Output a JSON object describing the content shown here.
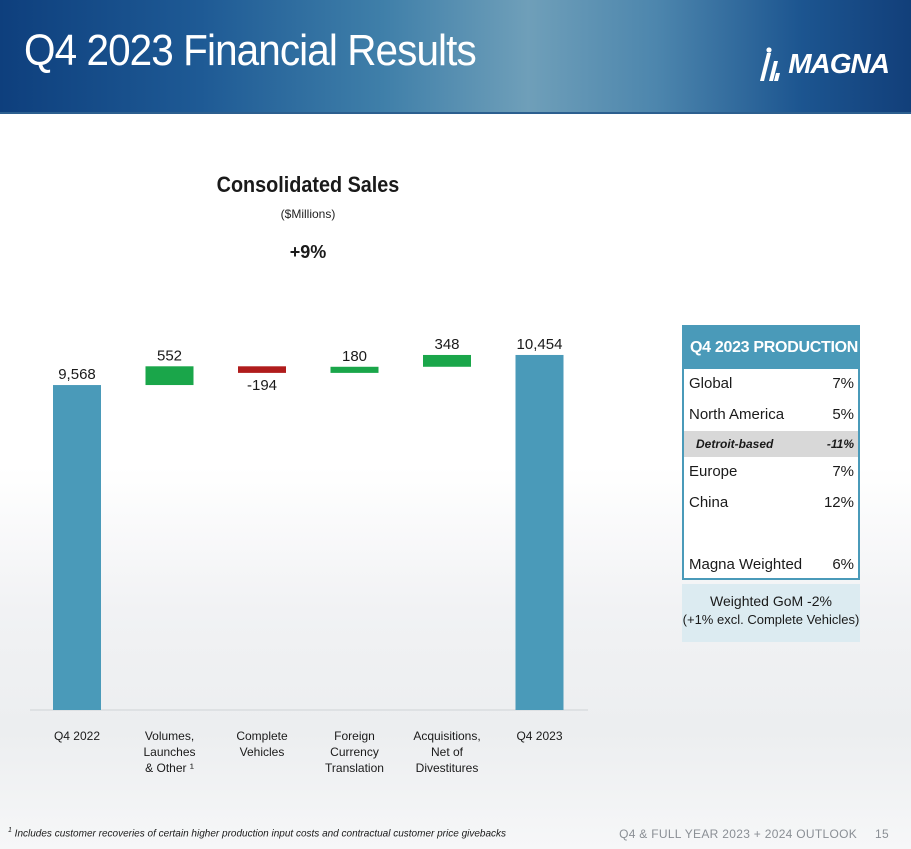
{
  "header": {
    "title": "Q4 2023 Financial Results",
    "logo_text": "MAGNA"
  },
  "chart_data": {
    "type": "bar",
    "subtype": "waterfall",
    "title": "Consolidated Sales",
    "subtitle": "($Millions)",
    "growth_label": "+9%",
    "categories": [
      [
        "Q4 2022"
      ],
      [
        "Volumes,",
        "Launches",
        "& Other ¹"
      ],
      [
        "Complete",
        "Vehicles"
      ],
      [
        "Foreign",
        "Currency",
        "Translation"
      ],
      [
        "Acquisitions,",
        "Net of",
        "Divestitures"
      ],
      [
        "Q4 2023"
      ]
    ],
    "values": [
      9568,
      552,
      -194,
      180,
      348,
      10454
    ],
    "value_labels": [
      "9,568",
      "552",
      "-194",
      "180",
      "348",
      "10,454"
    ],
    "kinds": [
      "total",
      "delta",
      "delta",
      "delta",
      "delta",
      "total"
    ],
    "colors": {
      "total": "#4a9ab9",
      "increase": "#1aa64a",
      "decrease": "#b01c1c"
    },
    "ylim": [
      0,
      10600
    ],
    "grid": false,
    "legend": "none"
  },
  "production_table": {
    "header": "Q4 2023 PRODUCTION",
    "rows": [
      {
        "name": "Global",
        "value": "7%",
        "style": "normal"
      },
      {
        "name": "North America",
        "value": "5%",
        "style": "normal"
      },
      {
        "name": "Detroit-based",
        "value": "-11%",
        "style": "sub"
      },
      {
        "name": "Europe",
        "value": "7%",
        "style": "normal"
      },
      {
        "name": "China",
        "value": "12%",
        "style": "normal"
      },
      {
        "name": "",
        "value": "",
        "style": "gap"
      },
      {
        "name": "Magna Weighted",
        "value": "6%",
        "style": "normal"
      }
    ],
    "accent_color": "#4a9ab9"
  },
  "gom": {
    "line1": "Weighted GoM -2%",
    "line2": "(+1% excl. Complete Vehicles)"
  },
  "footer": {
    "footnote_marker": "1",
    "footnote": " Includes customer recoveries of certain higher production input costs and contractual customer price givebacks",
    "deck_title": "Q4 & FULL YEAR 2023 + 2024 OUTLOOK",
    "page_number": "15"
  }
}
